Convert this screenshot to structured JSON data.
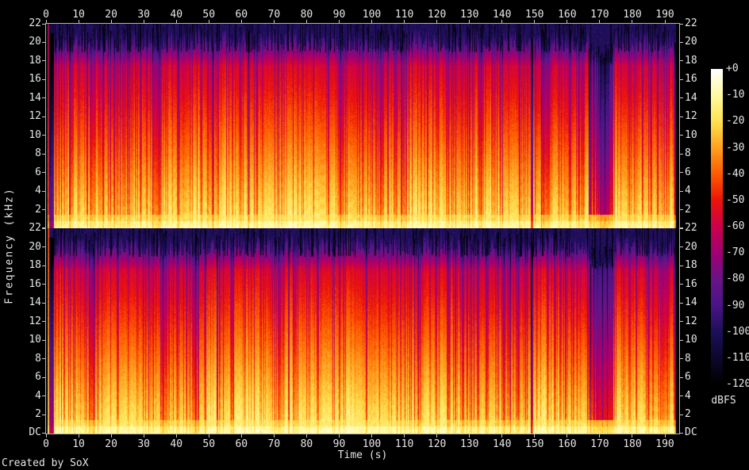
{
  "app": {
    "credit": "Created by SoX"
  },
  "axes": {
    "time": {
      "label": "Time (s)",
      "ticks": [
        0,
        10,
        20,
        30,
        40,
        50,
        60,
        70,
        80,
        90,
        100,
        110,
        120,
        130,
        140,
        150,
        160,
        170,
        180,
        190
      ]
    },
    "frequency": {
      "label": "Frequency (kHz)",
      "panel_ticks": [
        22,
        20,
        18,
        16,
        14,
        12,
        10,
        8,
        6,
        4,
        2
      ],
      "dc_label": "DC"
    }
  },
  "colorbar": {
    "label": "dBFS",
    "tick_labels": [
      "+0",
      "-10",
      "-20",
      "-30",
      "-40",
      "-50",
      "-60",
      "-70",
      "-80",
      "-90",
      "-100",
      "-110",
      "-120"
    ]
  },
  "chart_data": {
    "type": "heatmap",
    "subtype": "audio-spectrogram",
    "generator": "SoX",
    "panel_count": 2,
    "x_axis": {
      "label": "Time (s)",
      "range_s": [
        0,
        194.4
      ],
      "tick_step_s": 10,
      "ticks": [
        0,
        10,
        20,
        30,
        40,
        50,
        60,
        70,
        80,
        90,
        100,
        110,
        120,
        130,
        140,
        150,
        160,
        170,
        180,
        190
      ]
    },
    "y_axis": {
      "label": "Frequency (kHz)",
      "range_khz": [
        0,
        22
      ],
      "tick_step_khz": 2,
      "dc_label": "DC"
    },
    "z_axis": {
      "label": "dBFS",
      "range_db": [
        -120,
        0
      ],
      "tick_step_db": 10
    },
    "palette": [
      {
        "db": 0,
        "hex": "#ffffff"
      },
      {
        "db": -10,
        "hex": "#fffaa0"
      },
      {
        "db": -20,
        "hex": "#ffe150"
      },
      {
        "db": -30,
        "hex": "#ffa01e"
      },
      {
        "db": -40,
        "hex": "#ff5a00"
      },
      {
        "db": -50,
        "hex": "#eb140a"
      },
      {
        "db": -60,
        "hex": "#cd004b"
      },
      {
        "db": -70,
        "hex": "#a00073"
      },
      {
        "db": -80,
        "hex": "#691487"
      },
      {
        "db": -90,
        "hex": "#4a1488"
      },
      {
        "db": -100,
        "hex": "#1e0f5a"
      },
      {
        "db": -110,
        "hex": "#0c082d"
      },
      {
        "db": -120,
        "hex": "#000000"
      }
    ],
    "spectral_profile_db": {
      "0.5kHz": -15,
      "2kHz": -19,
      "4kHz": -24,
      "8kHz": -33,
      "12kHz": -43,
      "16kHz": -52,
      "19kHz": -72,
      "21kHz": -96
    },
    "features": {
      "track_start_s": 0.3,
      "intro_burst_s": [
        0.3,
        0.9
      ],
      "intro_quiet_s": [
        0.9,
        2.4
      ],
      "silence_line_s": 149.0,
      "quiet_section_s": [
        166.6,
        174.0
      ],
      "quiet_flicker_s": 2.2,
      "fade_out_s": [
        192.4,
        193.2
      ],
      "track_end_s": 193.2,
      "highcut_khz_range": [
        19,
        22.4
      ]
    }
  }
}
